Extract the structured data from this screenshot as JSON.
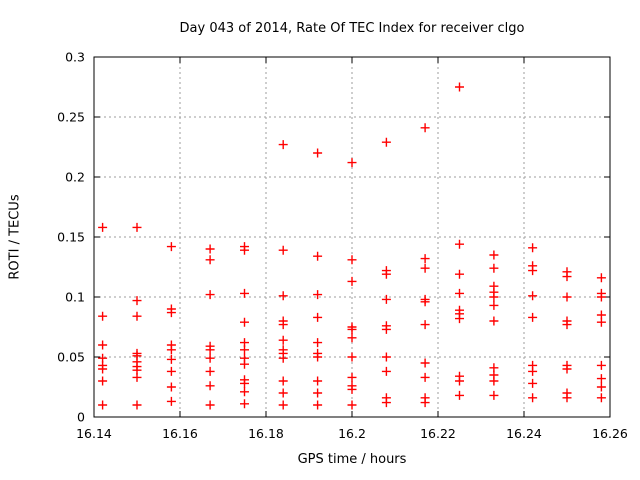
{
  "window": {
    "title": "Day 043 of 2014, Rate Of TEC Index for receiver clgo"
  },
  "colors": {
    "marker": "#ff0000",
    "grid": "#9e9e9e",
    "frame": "#000000",
    "background": "#ffffff",
    "text": "#000000"
  },
  "chart_data": {
    "type": "scatter",
    "title": "Day 043 of 2014, Rate Of TEC Index for receiver clgo",
    "xlabel": "GPS time / hours",
    "ylabel": "ROTI / TECUs",
    "xlim": [
      16.14,
      16.26
    ],
    "ylim": [
      0,
      0.3
    ],
    "xticks": [
      16.14,
      16.16,
      16.18,
      16.2,
      16.22,
      16.24,
      16.26
    ],
    "xtick_labels": [
      "16.14",
      "16.16",
      "16.18",
      "16.2",
      "16.22",
      "16.24",
      "16.26"
    ],
    "yticks": [
      0,
      0.05,
      0.1,
      0.15,
      0.2,
      0.25,
      0.3
    ],
    "ytick_labels": [
      "0",
      "0.05",
      "0.1",
      "0.15",
      "0.2",
      "0.25",
      "0.3"
    ],
    "grid": true,
    "legend": "none",
    "marker": {
      "shape": "plus",
      "color": "#ff0000",
      "size": 9
    },
    "series": [
      {
        "name": "ROTI",
        "points": [
          [
            16.142,
            0.158
          ],
          [
            16.142,
            0.084
          ],
          [
            16.142,
            0.06
          ],
          [
            16.142,
            0.049
          ],
          [
            16.142,
            0.043
          ],
          [
            16.142,
            0.04
          ],
          [
            16.142,
            0.03
          ],
          [
            16.142,
            0.01
          ],
          [
            16.15,
            0.158
          ],
          [
            16.15,
            0.097
          ],
          [
            16.15,
            0.084
          ],
          [
            16.15,
            0.053
          ],
          [
            16.15,
            0.051
          ],
          [
            16.15,
            0.046
          ],
          [
            16.15,
            0.042
          ],
          [
            16.15,
            0.039
          ],
          [
            16.15,
            0.033
          ],
          [
            16.15,
            0.01
          ],
          [
            16.158,
            0.142
          ],
          [
            16.158,
            0.09
          ],
          [
            16.158,
            0.087
          ],
          [
            16.158,
            0.06
          ],
          [
            16.158,
            0.056
          ],
          [
            16.158,
            0.048
          ],
          [
            16.158,
            0.038
          ],
          [
            16.158,
            0.025
          ],
          [
            16.158,
            0.013
          ],
          [
            16.167,
            0.14
          ],
          [
            16.167,
            0.131
          ],
          [
            16.167,
            0.102
          ],
          [
            16.167,
            0.059
          ],
          [
            16.167,
            0.056
          ],
          [
            16.167,
            0.049
          ],
          [
            16.167,
            0.038
          ],
          [
            16.167,
            0.026
          ],
          [
            16.167,
            0.01
          ],
          [
            16.175,
            0.142
          ],
          [
            16.175,
            0.139
          ],
          [
            16.175,
            0.103
          ],
          [
            16.175,
            0.079
          ],
          [
            16.175,
            0.062
          ],
          [
            16.175,
            0.056
          ],
          [
            16.175,
            0.049
          ],
          [
            16.175,
            0.044
          ],
          [
            16.175,
            0.031
          ],
          [
            16.175,
            0.028
          ],
          [
            16.175,
            0.021
          ],
          [
            16.175,
            0.011
          ],
          [
            16.184,
            0.227
          ],
          [
            16.184,
            0.139
          ],
          [
            16.184,
            0.101
          ],
          [
            16.184,
            0.08
          ],
          [
            16.184,
            0.077
          ],
          [
            16.184,
            0.064
          ],
          [
            16.184,
            0.056
          ],
          [
            16.184,
            0.053
          ],
          [
            16.184,
            0.049
          ],
          [
            16.184,
            0.03
          ],
          [
            16.184,
            0.02
          ],
          [
            16.184,
            0.01
          ],
          [
            16.192,
            0.22
          ],
          [
            16.192,
            0.134
          ],
          [
            16.192,
            0.102
          ],
          [
            16.192,
            0.083
          ],
          [
            16.192,
            0.062
          ],
          [
            16.192,
            0.053
          ],
          [
            16.192,
            0.05
          ],
          [
            16.192,
            0.03
          ],
          [
            16.192,
            0.02
          ],
          [
            16.192,
            0.01
          ],
          [
            16.2,
            0.212
          ],
          [
            16.2,
            0.131
          ],
          [
            16.2,
            0.113
          ],
          [
            16.2,
            0.075
          ],
          [
            16.2,
            0.073
          ],
          [
            16.2,
            0.066
          ],
          [
            16.2,
            0.05
          ],
          [
            16.2,
            0.033
          ],
          [
            16.2,
            0.026
          ],
          [
            16.2,
            0.023
          ],
          [
            16.2,
            0.01
          ],
          [
            16.208,
            0.229
          ],
          [
            16.208,
            0.122
          ],
          [
            16.208,
            0.119
          ],
          [
            16.208,
            0.098
          ],
          [
            16.208,
            0.076
          ],
          [
            16.208,
            0.073
          ],
          [
            16.208,
            0.05
          ],
          [
            16.208,
            0.038
          ],
          [
            16.208,
            0.016
          ],
          [
            16.208,
            0.012
          ],
          [
            16.217,
            0.241
          ],
          [
            16.217,
            0.132
          ],
          [
            16.217,
            0.124
          ],
          [
            16.217,
            0.098
          ],
          [
            16.217,
            0.096
          ],
          [
            16.217,
            0.077
          ],
          [
            16.217,
            0.045
          ],
          [
            16.217,
            0.033
          ],
          [
            16.217,
            0.016
          ],
          [
            16.217,
            0.012
          ],
          [
            16.225,
            0.275
          ],
          [
            16.225,
            0.144
          ],
          [
            16.225,
            0.119
          ],
          [
            16.225,
            0.103
          ],
          [
            16.225,
            0.089
          ],
          [
            16.225,
            0.086
          ],
          [
            16.225,
            0.082
          ],
          [
            16.225,
            0.034
          ],
          [
            16.225,
            0.03
          ],
          [
            16.225,
            0.018
          ],
          [
            16.233,
            0.135
          ],
          [
            16.233,
            0.124
          ],
          [
            16.233,
            0.109
          ],
          [
            16.233,
            0.104
          ],
          [
            16.233,
            0.1
          ],
          [
            16.233,
            0.093
          ],
          [
            16.233,
            0.08
          ],
          [
            16.233,
            0.041
          ],
          [
            16.233,
            0.035
          ],
          [
            16.233,
            0.03
          ],
          [
            16.233,
            0.018
          ],
          [
            16.242,
            0.141
          ],
          [
            16.242,
            0.126
          ],
          [
            16.242,
            0.122
          ],
          [
            16.242,
            0.101
          ],
          [
            16.242,
            0.083
          ],
          [
            16.242,
            0.043
          ],
          [
            16.242,
            0.038
          ],
          [
            16.242,
            0.028
          ],
          [
            16.242,
            0.016
          ],
          [
            16.25,
            0.121
          ],
          [
            16.25,
            0.117
          ],
          [
            16.25,
            0.1
          ],
          [
            16.25,
            0.08
          ],
          [
            16.25,
            0.077
          ],
          [
            16.25,
            0.043
          ],
          [
            16.25,
            0.04
          ],
          [
            16.25,
            0.02
          ],
          [
            16.25,
            0.016
          ],
          [
            16.258,
            0.116
          ],
          [
            16.258,
            0.103
          ],
          [
            16.258,
            0.1
          ],
          [
            16.258,
            0.085
          ],
          [
            16.258,
            0.079
          ],
          [
            16.258,
            0.043
          ],
          [
            16.258,
            0.032
          ],
          [
            16.258,
            0.025
          ],
          [
            16.258,
            0.016
          ]
        ]
      }
    ]
  }
}
